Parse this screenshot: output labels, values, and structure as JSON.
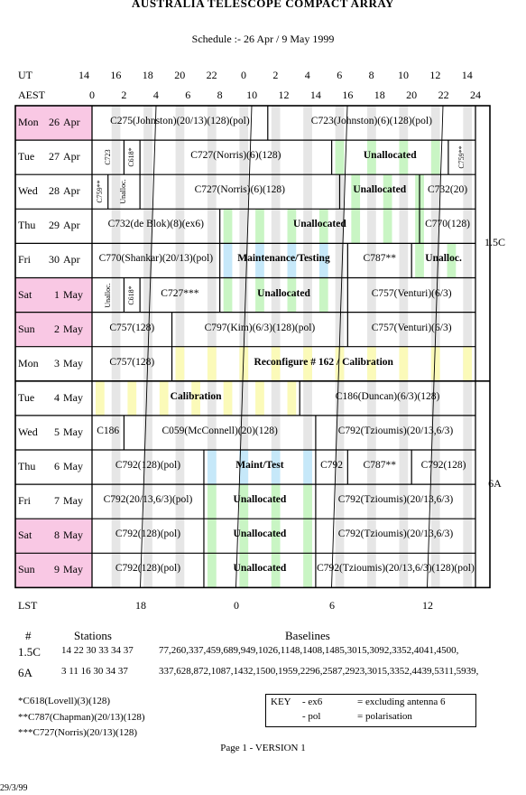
{
  "header": {
    "title": "AUSTRALIA TELESCOPE COMPACT ARRAY",
    "subtitle": "Schedule :- 26 Apr / 9 May 1999"
  },
  "time_axes": {
    "ut_label": "UT",
    "ut_ticks": [
      "14",
      "16",
      "18",
      "20",
      "22",
      "0",
      "2",
      "4",
      "6",
      "8",
      "10",
      "12",
      "14"
    ],
    "aest_label": "AEST",
    "aest_ticks": [
      "0",
      "2",
      "4",
      "6",
      "8",
      "10",
      "12",
      "14",
      "16",
      "18",
      "20",
      "22",
      "24"
    ],
    "lst_label": "LST",
    "lst_ticks": [
      "18",
      "0",
      "6",
      "12"
    ]
  },
  "days": [
    {
      "dow": "Mon",
      "d": "26",
      "m": "Apr",
      "weekend": true
    },
    {
      "dow": "Tue",
      "d": "27",
      "m": "Apr",
      "weekend": false
    },
    {
      "dow": "Wed",
      "d": "28",
      "m": "Apr",
      "weekend": false
    },
    {
      "dow": "Thu",
      "d": "29",
      "m": "Apr",
      "weekend": false
    },
    {
      "dow": "Fri",
      "d": "30",
      "m": "Apr",
      "weekend": false
    },
    {
      "dow": "Sat",
      "d": "1",
      "m": "May",
      "weekend": true
    },
    {
      "dow": "Sun",
      "d": "2",
      "m": "May",
      "weekend": true
    },
    {
      "dow": "Mon",
      "d": "3",
      "m": "May",
      "weekend": false
    },
    {
      "dow": "Tue",
      "d": "4",
      "m": "May",
      "weekend": false
    },
    {
      "dow": "Wed",
      "d": "5",
      "m": "May",
      "weekend": false
    },
    {
      "dow": "Thu",
      "d": "6",
      "m": "May",
      "weekend": false
    },
    {
      "dow": "Fri",
      "d": "7",
      "m": "May",
      "weekend": false
    },
    {
      "dow": "Sat",
      "d": "8",
      "m": "May",
      "weekend": true
    },
    {
      "dow": "Sun",
      "d": "9",
      "m": "May",
      "weekend": true
    }
  ],
  "blocks": [
    [
      {
        "s": 0,
        "e": 11,
        "t": "C275(Johnston)(20/13)(128)(pol)"
      },
      {
        "s": 11,
        "e": 24,
        "t": "C723(Johnston)(6)(128)(pol)"
      }
    ],
    [
      {
        "s": 0,
        "e": 2,
        "t": "C723",
        "r": true
      },
      {
        "s": 2,
        "e": 3,
        "t": "C618*",
        "r": true
      },
      {
        "s": 3,
        "e": 15,
        "t": "C727(Norris)(6)(128)"
      },
      {
        "s": 15,
        "e": 22.3,
        "t": "Unallocated"
      },
      {
        "s": 22.3,
        "e": 24,
        "t": "C759**",
        "r": true
      }
    ],
    [
      {
        "s": 0,
        "e": 1,
        "t": "C759**",
        "r": true
      },
      {
        "s": 1,
        "e": 3,
        "t": "Unalloc.",
        "r": true
      },
      {
        "s": 3,
        "e": 15.5,
        "t": "C727(Norris)(6)(128)"
      },
      {
        "s": 15.5,
        "e": 20.5,
        "t": "Unallocated"
      },
      {
        "s": 20.5,
        "e": 24,
        "t": "C732(20)"
      }
    ],
    [
      {
        "s": 0,
        "e": 8,
        "t": "C732(de Blok)(8)(ex6)"
      },
      {
        "s": 8,
        "e": 20.5,
        "t": "Unallocated"
      },
      {
        "s": 20.5,
        "e": 24,
        "t": "C770(128)"
      }
    ],
    [
      {
        "s": 0,
        "e": 8,
        "t": "C770(Shankar)(20/13)(pol)"
      },
      {
        "s": 8,
        "e": 16,
        "t": "Maintenance/Testing"
      },
      {
        "s": 16,
        "e": 20,
        "t": "C787**"
      },
      {
        "s": 20,
        "e": 24,
        "t": "Unalloc."
      }
    ],
    [
      {
        "s": 0,
        "e": 2,
        "t": "Unalloc.",
        "r": true
      },
      {
        "s": 2,
        "e": 3,
        "t": "C618*",
        "r": true
      },
      {
        "s": 3,
        "e": 8,
        "t": "C727***"
      },
      {
        "s": 8,
        "e": 16,
        "t": "Unallocated"
      },
      {
        "s": 16,
        "e": 24,
        "t": "C757(Venturi)(6/3)"
      }
    ],
    [
      {
        "s": 0,
        "e": 5,
        "t": "C757(128)"
      },
      {
        "s": 5,
        "e": 16,
        "t": "C797(Kim)(6/3)(128)(pol)"
      },
      {
        "s": 16,
        "e": 24,
        "t": "C757(Venturi)(6/3)"
      }
    ],
    [
      {
        "s": 0,
        "e": 5,
        "t": "C757(128)"
      },
      {
        "s": 5,
        "e": 24,
        "t": "Reconfigure # 162 / Calibration",
        "b": true
      }
    ],
    [
      {
        "s": 0,
        "e": 13,
        "t": "Calibration",
        "b": true
      },
      {
        "s": 13,
        "e": 24,
        "t": "C186(Duncan)(6/3)(128)"
      }
    ],
    [
      {
        "s": 0,
        "e": 2,
        "t": "C186"
      },
      {
        "s": 2,
        "e": 14,
        "t": "C059(McConnell)(20)(128)"
      },
      {
        "s": 14,
        "e": 24,
        "t": "C792(Tzioumis)(20/13,6/3)"
      }
    ],
    [
      {
        "s": 0,
        "e": 7,
        "t": "C792(128)(pol)"
      },
      {
        "s": 7,
        "e": 14,
        "t": "Maint/Test"
      },
      {
        "s": 14,
        "e": 16,
        "t": "C792"
      },
      {
        "s": 16,
        "e": 20,
        "t": "C787**"
      },
      {
        "s": 20,
        "e": 24,
        "t": "C792(128)"
      }
    ],
    [
      {
        "s": 0,
        "e": 7,
        "t": "C792(20/13,6/3)(pol)"
      },
      {
        "s": 7,
        "e": 14,
        "t": "Unallocated"
      },
      {
        "s": 14,
        "e": 24,
        "t": "C792(Tzioumis)(20/13,6/3)"
      }
    ],
    [
      {
        "s": 0,
        "e": 7,
        "t": "C792(128)(pol)"
      },
      {
        "s": 7,
        "e": 14,
        "t": "Unallocated"
      },
      {
        "s": 14,
        "e": 24,
        "t": "C792(Tzioumis)(20/13,6/3)"
      }
    ],
    [
      {
        "s": 0,
        "e": 7,
        "t": "C792(128)(pol)"
      },
      {
        "s": 7,
        "e": 14,
        "t": "Unallocated"
      },
      {
        "s": 14,
        "e": 24,
        "t": "C792(Tzioumis)(20/13,6/3)(128)(pol)"
      }
    ]
  ],
  "configs": [
    {
      "label": "1.5C",
      "first_row": 0,
      "last_row": 7
    },
    {
      "label": "6A",
      "first_row": 8,
      "last_row": 13
    }
  ],
  "stations_table": {
    "hash_header": "#",
    "stations_header": "Stations",
    "baselines_header": "Baselines",
    "rows": [
      {
        "config": "1.5C",
        "stations": "14 22 30 33 34 37",
        "baselines": "77,260,337,459,689,949,1026,1148,1408,1485,3015,3092,3352,4041,4500,"
      },
      {
        "config": "6A",
        "stations": "3 11 16 30 34 37",
        "baselines": "337,628,872,1087,1432,1500,1959,2296,2587,2923,3015,3352,4439,5311,5939,"
      }
    ]
  },
  "footnotes": [
    "*C618(Lovell)(3)(128)",
    "**C787(Chapman)(20/13)(128)",
    "***C727(Norris)(20/13)(128)"
  ],
  "key": {
    "title": "KEY",
    "items": [
      {
        "code": "- ex6",
        "desc": "= excluding antenna 6"
      },
      {
        "code": "- pol",
        "desc": "= polarisation"
      }
    ]
  },
  "page_label": "Page 1 - VERSION 1",
  "date_stamp": "29/3/99",
  "colors": {
    "weekend": "#f9c8e4",
    "unallocated": "#c9f5c4",
    "maintenance": "#c6e8f9",
    "calibration": "#fbfab9",
    "stripe_gray": "#e6e6e6",
    "grid": "#000000"
  }
}
